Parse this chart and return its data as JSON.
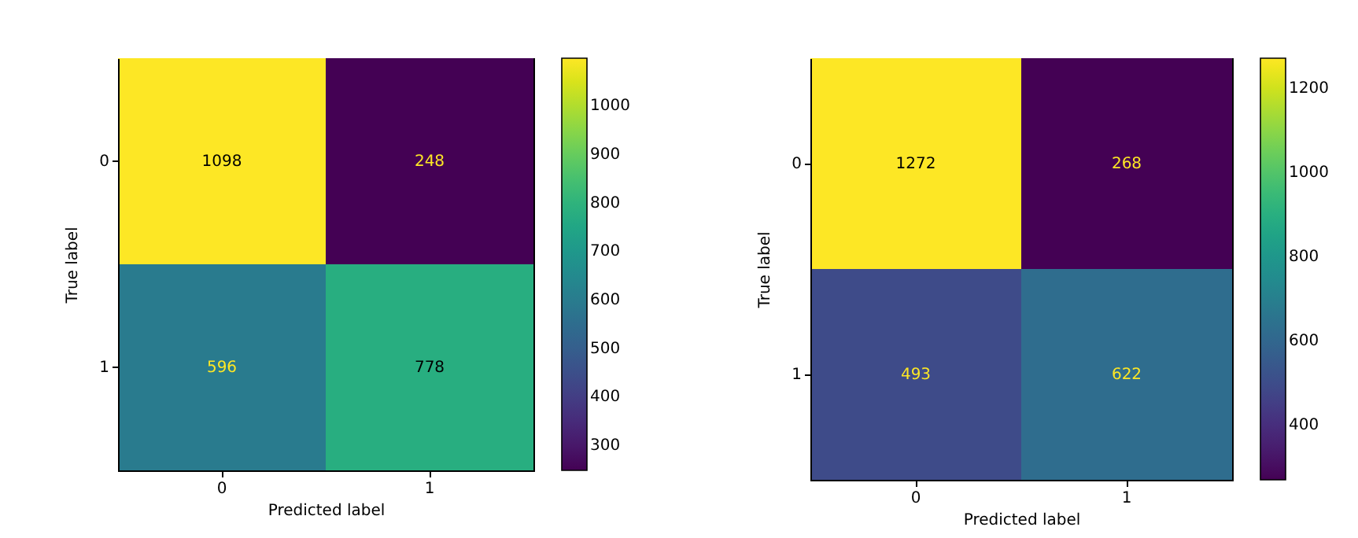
{
  "chart_data": [
    {
      "type": "heatmap",
      "xlabel": "Predicted label",
      "ylabel": "True label",
      "categories": [
        "0",
        "1"
      ],
      "y_categories": [
        "0",
        "1"
      ],
      "cells": [
        [
          1098,
          248
        ],
        [
          596,
          778
        ]
      ],
      "clim": [
        248,
        1098
      ],
      "cticks": [
        300,
        400,
        500,
        600,
        700,
        800,
        900,
        1000
      ],
      "data_labels": true
    },
    {
      "type": "heatmap",
      "xlabel": "Predicted label",
      "ylabel": "True label",
      "categories": [
        "0",
        "1"
      ],
      "y_categories": [
        "0",
        "1"
      ],
      "cells": [
        [
          1272,
          268
        ],
        [
          493,
          622
        ]
      ],
      "clim": [
        268,
        1272
      ],
      "cticks": [
        400,
        600,
        800,
        1000,
        1200
      ],
      "data_labels": true
    }
  ]
}
